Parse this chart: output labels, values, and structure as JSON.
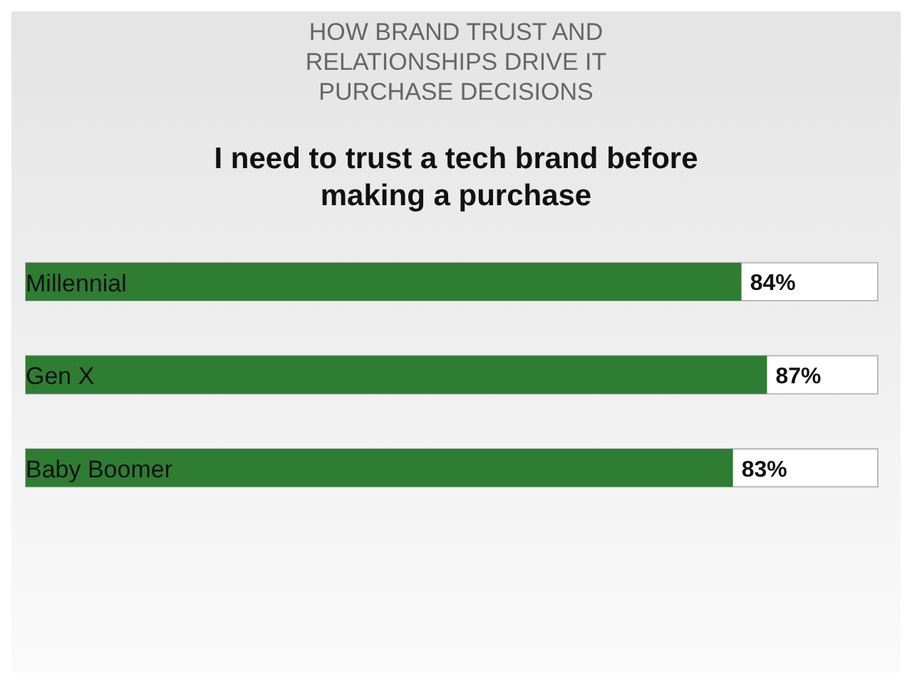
{
  "chart_data": {
    "type": "bar",
    "orientation": "horizontal",
    "title": "HOW BRAND TRUST AND RELATIONSHIPS DRIVE IT PURCHASE DECISIONS",
    "subtitle": "I need to trust a tech brand before making a purchase",
    "categories": [
      "Millennial",
      "Gen X",
      "Baby Boomer"
    ],
    "values": [
      84,
      87,
      83
    ],
    "value_labels": [
      "84%",
      "87%",
      "83%"
    ],
    "color": "#2e7d32",
    "xlim": [
      0,
      100
    ]
  }
}
